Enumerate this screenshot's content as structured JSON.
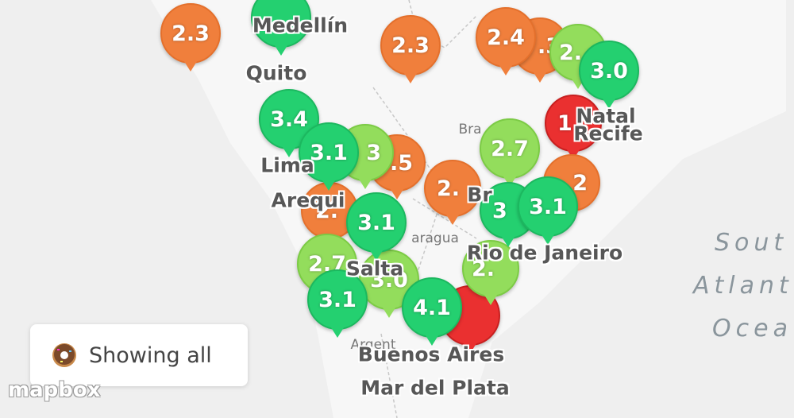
{
  "map": {
    "place_labels": [
      "Bra",
      "aragua",
      "Argent"
    ],
    "ocean_label": [
      "Sout",
      "Atlant",
      "Ocea"
    ],
    "markers": [
      "2.3",
      "2.3",
      "2.4",
      ".3",
      ".5",
      "2.",
      "2.",
      "1",
      "2",
      "2.",
      "2.7",
      "3",
      "3.0",
      "2.7",
      "2.",
      "3.4",
      "3.1",
      "3.1",
      "3.1",
      "3.1",
      "4.1",
      "3.0",
      "3"
    ],
    "cities": [
      "Medellín",
      "Quito",
      "Lima",
      "Arequi",
      "Salta",
      "Buenos Aires",
      "Mar del Plata",
      "Rio de Janeiro",
      "Natal",
      "Recife",
      "Br"
    ]
  },
  "filter": {
    "label": "Showing all"
  },
  "attribution": {
    "logo": "mapbox"
  }
}
